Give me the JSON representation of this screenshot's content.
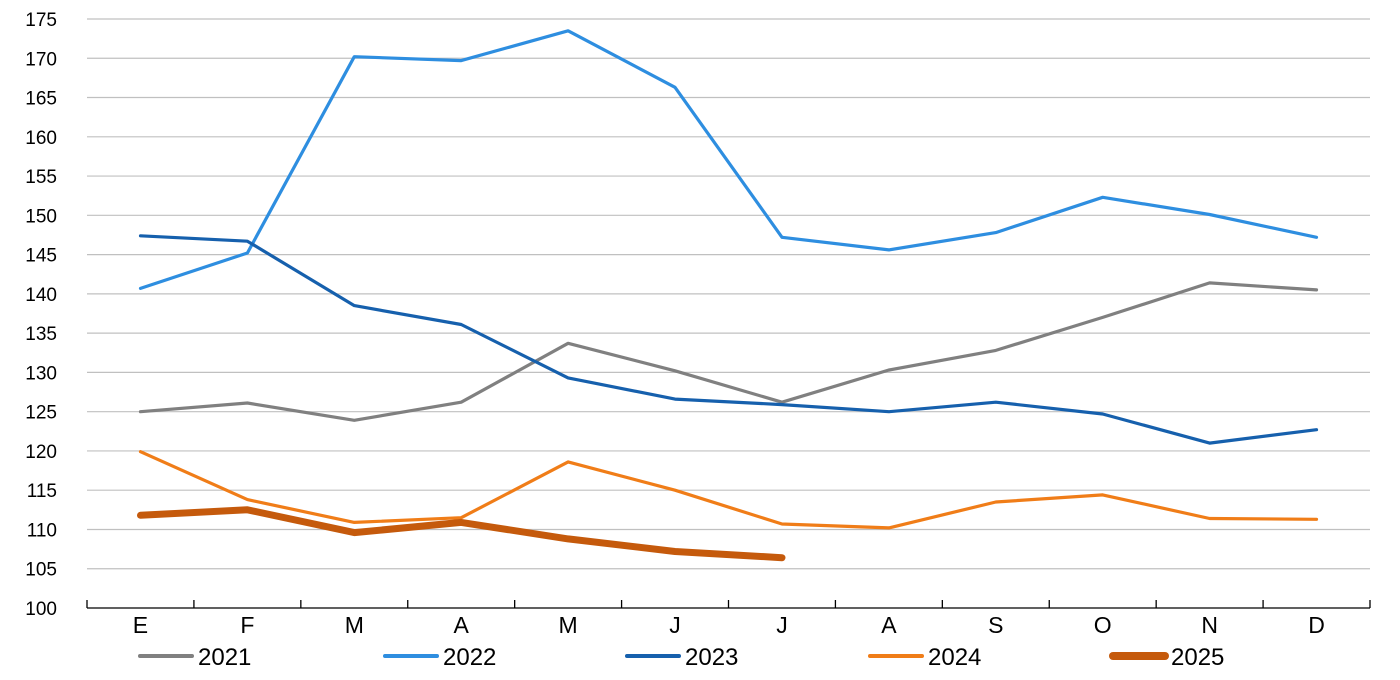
{
  "chart_data": {
    "type": "line",
    "title": "",
    "xlabel": "",
    "ylabel": "",
    "categories": [
      "E",
      "F",
      "M",
      "A",
      "M",
      "J",
      "J",
      "A",
      "S",
      "O",
      "N",
      "D"
    ],
    "ylim": [
      100,
      175
    ],
    "yticks": [
      100,
      105,
      110,
      115,
      120,
      125,
      130,
      135,
      140,
      145,
      150,
      155,
      160,
      165,
      170,
      175
    ],
    "grid": "horizontal",
    "legend_position": "bottom",
    "series": [
      {
        "name": "2021",
        "color": "#808080",
        "values": [
          125.0,
          126.1,
          123.9,
          126.2,
          133.7,
          130.2,
          126.2,
          130.3,
          132.8,
          137.0,
          141.4,
          140.5
        ]
      },
      {
        "name": "2022",
        "color": "#2e8ee0",
        "values": [
          140.7,
          145.2,
          170.2,
          169.7,
          173.5,
          166.3,
          147.2,
          145.6,
          147.8,
          152.3,
          150.1,
          147.2
        ]
      },
      {
        "name": "2023",
        "color": "#1660ad",
        "values": [
          147.4,
          146.7,
          138.5,
          136.1,
          129.3,
          126.6,
          125.9,
          125.0,
          126.2,
          124.7,
          121.0,
          122.7
        ]
      },
      {
        "name": "2024",
        "color": "#f07d18",
        "values": [
          119.9,
          113.8,
          110.9,
          111.5,
          118.6,
          115.0,
          110.7,
          110.2,
          113.5,
          114.4,
          111.4,
          111.3
        ]
      },
      {
        "name": "2025",
        "color": "#c55a0c",
        "values": [
          111.8,
          112.5,
          109.6,
          110.9,
          108.8,
          107.2,
          106.4,
          null,
          null,
          null,
          null,
          null
        ]
      }
    ]
  }
}
